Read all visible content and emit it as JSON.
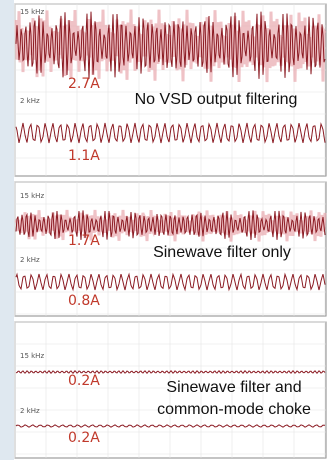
{
  "panels": [
    {
      "top_freq": "15 kHz",
      "top_current": "2.7A",
      "caption": [
        "No VSD output filtering"
      ],
      "bottom_freq": "2 kHz",
      "bottom_current": "1.1A"
    },
    {
      "top_freq": "15 kHz",
      "top_current": "1.7A",
      "caption": [
        "Sinewave filter only"
      ],
      "bottom_freq": "2 kHz",
      "bottom_current": "0.8A"
    },
    {
      "top_freq": "15 kHz",
      "top_current": "0.2A",
      "caption": [
        "Sinewave filter and",
        "common-mode choke"
      ],
      "bottom_freq": "2 kHz",
      "bottom_current": "0.2A"
    }
  ]
}
